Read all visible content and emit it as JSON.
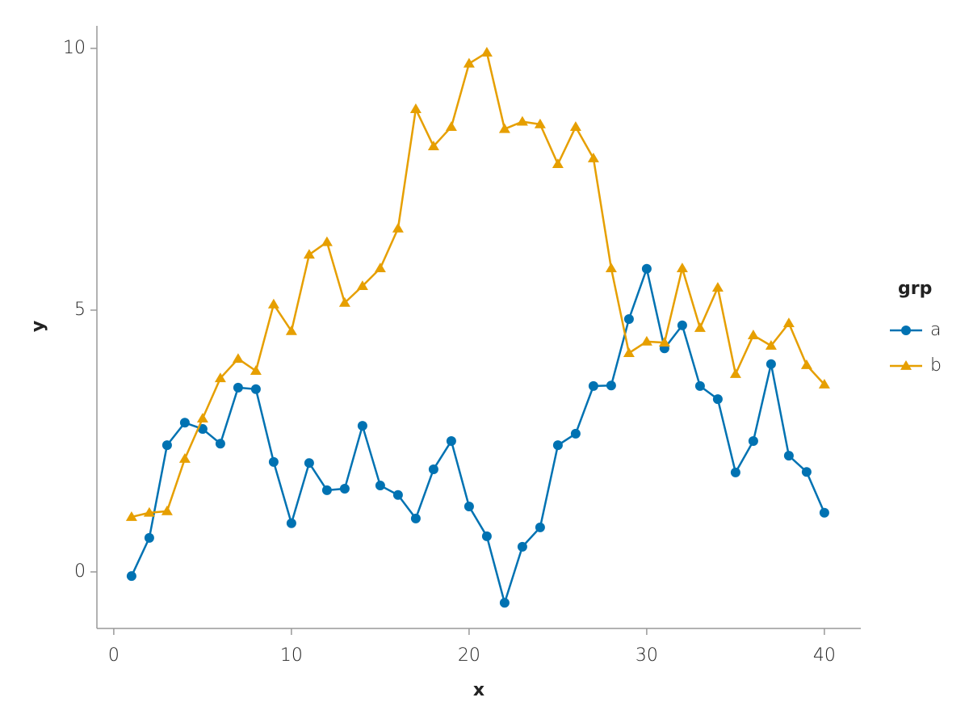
{
  "chart_data": {
    "type": "line",
    "x_label": "x",
    "y_label": "y",
    "x": [
      1,
      2,
      3,
      4,
      5,
      6,
      7,
      8,
      9,
      10,
      11,
      12,
      13,
      14,
      15,
      16,
      17,
      18,
      19,
      20,
      21,
      22,
      23,
      24,
      25,
      26,
      27,
      28,
      29,
      30,
      31,
      32,
      33,
      34,
      35,
      36,
      37,
      38,
      39,
      40
    ],
    "series": [
      {
        "name": "a",
        "color": "#0072b2",
        "marker": "circle",
        "values": [
          -0.08,
          0.65,
          2.42,
          2.85,
          2.73,
          2.45,
          3.52,
          3.49,
          2.1,
          0.93,
          2.08,
          1.56,
          1.59,
          2.79,
          1.65,
          1.47,
          1.02,
          1.96,
          2.5,
          1.25,
          0.68,
          -0.59,
          0.48,
          0.85,
          2.42,
          2.64,
          3.55,
          3.56,
          4.83,
          5.79,
          4.27,
          4.71,
          3.55,
          3.3,
          1.9,
          2.5,
          3.97,
          2.22,
          1.91,
          1.13
        ]
      },
      {
        "name": "b",
        "color": "#e69f00",
        "marker": "triangle",
        "values": [
          1.05,
          1.13,
          1.16,
          2.16,
          2.93,
          3.7,
          4.07,
          3.84,
          5.11,
          4.6,
          6.06,
          6.3,
          5.14,
          5.46,
          5.8,
          6.56,
          8.84,
          8.13,
          8.5,
          9.71,
          9.92,
          8.46,
          8.6,
          8.55,
          7.79,
          8.5,
          7.9,
          5.8,
          4.18,
          4.4,
          4.38,
          5.8,
          4.66,
          5.43,
          3.78,
          4.52,
          4.32,
          4.75,
          3.95,
          3.58
        ]
      }
    ],
    "legend_title": "grp",
    "legend_position": "right",
    "xlim": [
      -0.95,
      42.05
    ],
    "xticks": [
      0,
      10,
      20,
      30,
      40
    ],
    "ylim": [
      -1.08,
      10.43
    ],
    "yticks": [
      0,
      5,
      10
    ],
    "grid": false
  }
}
